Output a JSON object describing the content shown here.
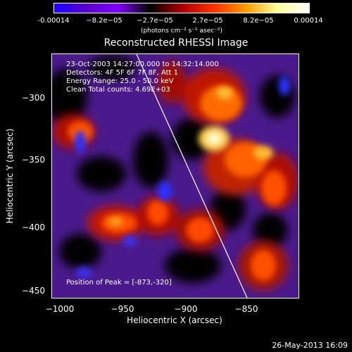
{
  "colorbar": {
    "ticks": [
      "-0.00014",
      "−8.2e−05",
      "−2.7e−05",
      "2.7e−05",
      "8.2e−05",
      "0.00014"
    ],
    "units_label": "(photons cm⁻² s⁻¹ asec⁻²)",
    "colors": [
      "#1a00ff",
      "#5a00cc",
      "#8000ff",
      "#000000",
      "#aa0000",
      "#ff3000",
      "#ff9900",
      "#ffff99",
      "#ffffff"
    ]
  },
  "title": "Reconstructed RHESSI Image",
  "info": {
    "time_range": "23-Oct-2003 14:27:00.000 to 14:32:14.000",
    "detectors": "Detectors: 4F 5F 6F 7F 8F, Att 1",
    "energy_range": "Energy Range: 25.0 - 50.0 keV",
    "clean_counts": "Clean     Total counts: 4.69E+03",
    "peak": "Position of Peak = [-873,-320]"
  },
  "axes": {
    "xlabel": "Heliocentric X (arcsec)",
    "ylabel": "Heliocentric Y (arcsec)",
    "xticks": [
      "−1000",
      "−950",
      "−900",
      "−850"
    ],
    "yticks": [
      "−300",
      "−350",
      "−400",
      "−450"
    ]
  },
  "datestamp": "26-May-2013 16:09"
}
